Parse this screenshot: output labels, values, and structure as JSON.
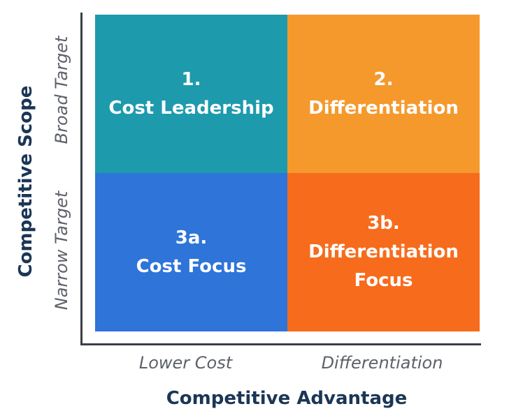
{
  "axes": {
    "y_label": "Competitive Scope",
    "x_label": "Competitive Advantage",
    "y_ticks": [
      "Broad Target",
      "Narrow Target"
    ],
    "x_ticks": [
      "Lower Cost",
      "Differentiation"
    ]
  },
  "quadrants": [
    {
      "number": "1.",
      "lines": [
        "Cost Leadership"
      ],
      "color": "#1e9aad"
    },
    {
      "number": "2.",
      "lines": [
        "Differentiation"
      ],
      "color": "#f5992c"
    },
    {
      "number": "3a.",
      "lines": [
        "Cost Focus"
      ],
      "color": "#2e74d9"
    },
    {
      "number": "3b.",
      "lines": [
        "Differentiation",
        "Focus"
      ],
      "color": "#f76b1c"
    }
  ]
}
